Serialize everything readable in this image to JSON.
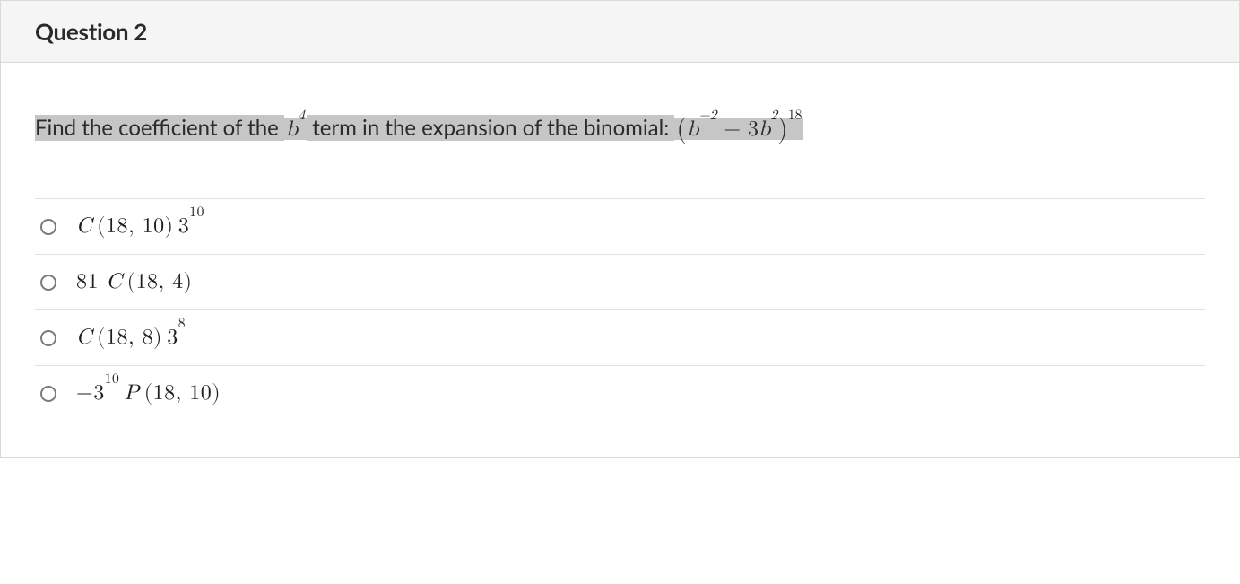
{
  "question": {
    "title": "Question 2",
    "prompt": {
      "part1": "Find the coefficient of the ",
      "term_base": "b",
      "term_exp": "4",
      "part2": " term in the expansion of the binomial: ",
      "binom_open": "(",
      "binom_a_base": "b",
      "binom_a_exp": "−2",
      "binom_minus": " − ",
      "binom_b_coef": "3",
      "binom_b_base": "b",
      "binom_b_exp": "2",
      "binom_close": ")",
      "binom_outer_exp": "18"
    },
    "options": [
      {
        "id": "a",
        "prefix": "",
        "func": "C",
        "args": "(18, 10)",
        "coef_base": "3",
        "coef_exp": "10",
        "coef_pos": "after"
      },
      {
        "id": "b",
        "prefix": "81 ",
        "func": "C",
        "args": "(18, 4)",
        "coef_base": "",
        "coef_exp": "",
        "coef_pos": "none"
      },
      {
        "id": "c",
        "prefix": "",
        "func": "C",
        "args": "(18, 8)",
        "coef_base": "3",
        "coef_exp": "8",
        "coef_pos": "after"
      },
      {
        "id": "d",
        "prefix": "−",
        "func": "P",
        "args": "(18, 10)",
        "coef_base": "3",
        "coef_exp": "10",
        "coef_pos": "before"
      }
    ],
    "colors": {
      "header_bg": "#f5f5f5",
      "border": "#d9d9d9",
      "option_border": "#e1e1e1",
      "highlight_bg": "#c6c6c6",
      "text": "#2b2b2b",
      "radio_border": "#7a7a7a"
    },
    "fonts": {
      "title_size": 26,
      "prompt_size": 24,
      "option_size": 24
    }
  }
}
